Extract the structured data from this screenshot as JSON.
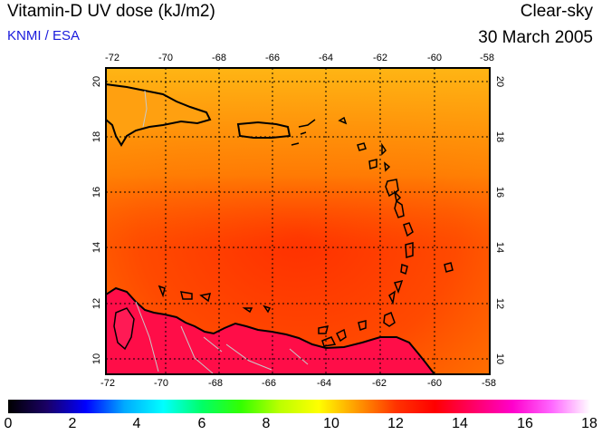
{
  "header": {
    "title": "Vitamin-D UV dose (kJ/m2)",
    "credit": "KNMI / ESA",
    "sky": "Clear-sky",
    "date": "30 March 2005"
  },
  "map": {
    "lon_ticks": [
      "-72",
      "-70",
      "-68",
      "-66",
      "-64",
      "-62",
      "-60",
      "-58"
    ],
    "lat_ticks": [
      "10",
      "12",
      "14",
      "16",
      "18",
      "20"
    ]
  },
  "colorbar": {
    "labels": [
      "0",
      "2",
      "4",
      "6",
      "8",
      "10",
      "12",
      "14",
      "16",
      "18"
    ],
    "colors": [
      "#000000",
      "#1a0066",
      "#0000ff",
      "#00aaff",
      "#00ffff",
      "#00ff66",
      "#33ff00",
      "#bbff00",
      "#ffff00",
      "#ff9900",
      "#ff3300",
      "#ff0000",
      "#ff0066",
      "#ff00cc",
      "#ff66ff",
      "#ffffff"
    ]
  },
  "colors": {
    "credit": "#1a1adc",
    "field_high": "#ff3a00",
    "field_low": "#ffaa10",
    "south_coast": "#ff0f4a"
  }
}
